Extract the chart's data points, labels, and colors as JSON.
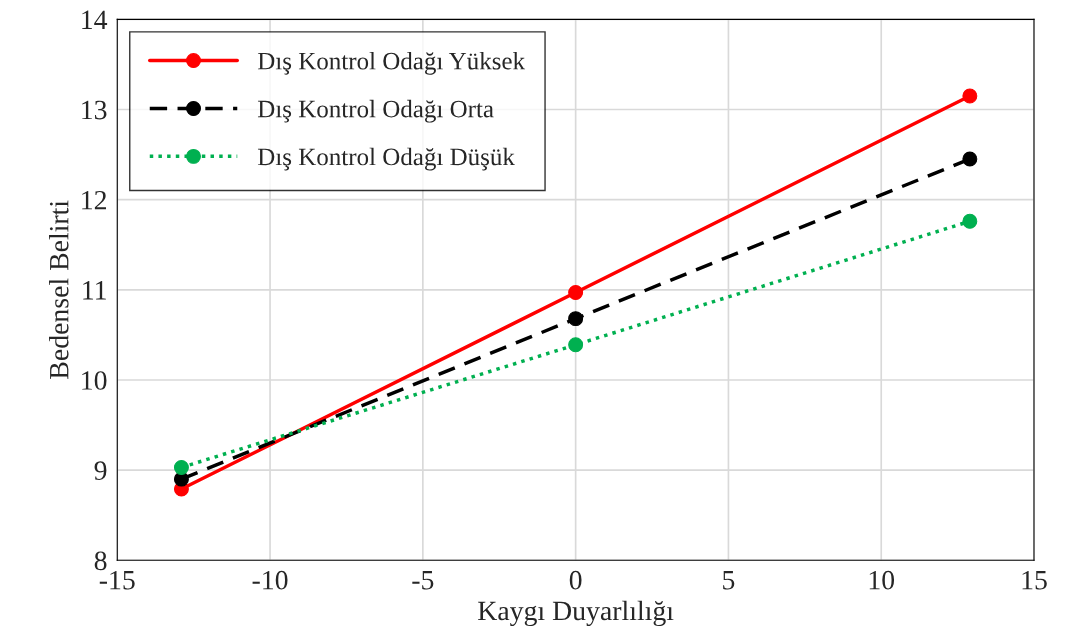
{
  "chart_data": {
    "type": "line",
    "xlabel": "Kaygı Duyarlılığı",
    "ylabel": "Bedensel Belirti",
    "xlim": [
      -15,
      15
    ],
    "xticks": [
      -15,
      -10,
      -5,
      0,
      5,
      10,
      15
    ],
    "ylim": [
      8,
      14
    ],
    "yticks": [
      8,
      9,
      10,
      11,
      12,
      13,
      14
    ],
    "grid": true,
    "legend": "top left",
    "marker": "circle",
    "series": [
      {
        "name": "Dış Kontrol Odağı Yüksek",
        "color": "#ff0000",
        "line_style": "solid",
        "x": [
          -12.9,
          0,
          12.9
        ],
        "values": [
          8.79,
          10.97,
          13.15
        ]
      },
      {
        "name": "Dış Kontrol Odağı Orta",
        "color": "#000000",
        "line_style": "dashed",
        "x": [
          -12.9,
          0,
          12.9
        ],
        "values": [
          8.9,
          10.68,
          12.45
        ]
      },
      {
        "name": "Dış Kontrol Odağı Düşük",
        "color": "#00b050",
        "line_style": "dotted",
        "x": [
          -12.9,
          0,
          12.9
        ],
        "values": [
          9.03,
          10.39,
          11.76
        ]
      }
    ]
  }
}
